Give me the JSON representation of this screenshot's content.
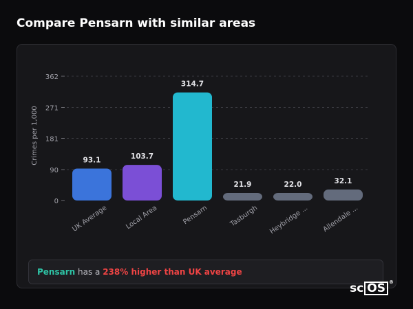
{
  "page": {
    "title": "Compare Pensarn with similar areas"
  },
  "chart_data": {
    "type": "bar",
    "ylabel": "Crimes per 1,000",
    "xlabel": "",
    "ylim": [
      0,
      362
    ],
    "yticks": [
      0,
      90,
      181,
      271,
      362
    ],
    "grid": true,
    "categories": [
      "UK Average",
      "Local Area",
      "Pensarn",
      "Tasburgh",
      "Heybridge ...",
      "Allendale ..."
    ],
    "values": [
      93.1,
      103.7,
      314.7,
      21.9,
      22.0,
      32.1
    ],
    "value_labels": [
      "93.1",
      "103.7",
      "314.7",
      "21.9",
      "22.0",
      "32.1"
    ],
    "colors": [
      "#3b74db",
      "#7b4fd6",
      "#22b8cf",
      "#636b7c",
      "#636b7c",
      "#636b7c"
    ]
  },
  "summary": {
    "area": "Pensarn",
    "middle": " has a ",
    "difference": "238% higher than UK average"
  },
  "logo": {
    "prefix": "sc",
    "boxed": "OS",
    "mark": "®"
  }
}
